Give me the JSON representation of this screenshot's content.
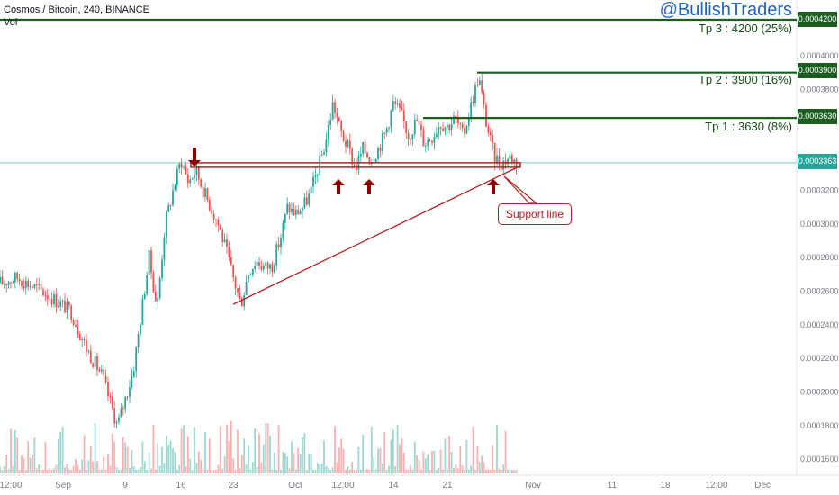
{
  "header": {
    "title": "Cosmos / Bitcoin, 240, BINANCE",
    "vol_label": "Vol"
  },
  "brand": "@BullishTraders",
  "targets": [
    {
      "label": "Tp 3 : 4200 (25%)",
      "price": 0.00042,
      "tag": "0.0004200"
    },
    {
      "label": "Tp 2 : 3900 (16%)",
      "price": 0.00039,
      "tag": "0.0003900"
    },
    {
      "label": "Tp 1 : 3630 (8%)",
      "price": 0.000363,
      "tag": "0.0003630"
    }
  ],
  "current_price_tag": "0.0003363",
  "annotation": "Support line",
  "colors": {
    "up": "#26a69a",
    "down": "#ef5350",
    "target_line": "#1b5e20",
    "support": "#b22222",
    "current": "#26a69a",
    "brand": "#1e64c8"
  },
  "chart_data": {
    "type": "candlestick",
    "symbol": "Cosmos / Bitcoin",
    "interval": "240",
    "exchange": "BINANCE",
    "y_scale": "price (BTC)",
    "ylim": [
      0.000154,
      0.00042
    ],
    "y_ticks": [
      "0.0004000",
      "0.0003800",
      "0.0003200",
      "0.0003000",
      "0.0002800",
      "0.0002600",
      "0.0002400",
      "0.0002200",
      "0.0002000",
      "0.0001800",
      "0.0001600"
    ],
    "x_ticks": [
      "12:00",
      "Sep",
      "9",
      "16",
      "23",
      "Oct",
      "12:00",
      "14",
      "21",
      "Nov",
      "11",
      "18",
      "12:00",
      "Dec"
    ],
    "price_path": [
      {
        "d": "Aug 28",
        "p": 0.000265
      },
      {
        "d": "Aug 29",
        "p": 0.000268
      },
      {
        "d": "Aug 31",
        "p": 0.000258
      },
      {
        "d": "Sep 2",
        "p": 0.000248
      },
      {
        "d": "Sep 4",
        "p": 0.000226
      },
      {
        "d": "Sep 6",
        "p": 0.00021
      },
      {
        "d": "Sep 8",
        "p": 0.00018
      },
      {
        "d": "Sep 10",
        "p": 0.000212
      },
      {
        "d": "Sep 11",
        "p": 0.000246
      },
      {
        "d": "Sep 12",
        "p": 0.00028
      },
      {
        "d": "Sep 13",
        "p": 0.00025
      },
      {
        "d": "Sep 14",
        "p": 0.0003
      },
      {
        "d": "Sep 15",
        "p": 0.00032
      },
      {
        "d": "Sep 16",
        "p": 0.000338
      },
      {
        "d": "Sep 17",
        "p": 0.000325
      },
      {
        "d": "Sep 18",
        "p": 0.000332
      },
      {
        "d": "Sep 19",
        "p": 0.00032
      },
      {
        "d": "Sep 21",
        "p": 0.0003
      },
      {
        "d": "Sep 22",
        "p": 0.000285
      },
      {
        "d": "Sep 23",
        "p": 0.000268
      },
      {
        "d": "Sep 24",
        "p": 0.000252
      },
      {
        "d": "Sep 25",
        "p": 0.000272
      },
      {
        "d": "Sep 26",
        "p": 0.000278
      },
      {
        "d": "Sep 27",
        "p": 0.000274
      },
      {
        "d": "Sep 28",
        "p": 0.000275
      },
      {
        "d": "Sep 29",
        "p": 0.00029
      },
      {
        "d": "Sep 30",
        "p": 0.00031
      },
      {
        "d": "Oct 1",
        "p": 0.000306
      },
      {
        "d": "Oct 2",
        "p": 0.00031
      },
      {
        "d": "Oct 3",
        "p": 0.000318
      },
      {
        "d": "Oct 4",
        "p": 0.000333
      },
      {
        "d": "Oct 5",
        "p": 0.000348
      },
      {
        "d": "Oct 6",
        "p": 0.000372
      },
      {
        "d": "Oct 7",
        "p": 0.000355
      },
      {
        "d": "Oct 8",
        "p": 0.000345
      },
      {
        "d": "Oct 9",
        "p": 0.000333
      },
      {
        "d": "Oct 10",
        "p": 0.000345
      },
      {
        "d": "Oct 11",
        "p": 0.000338
      },
      {
        "d": "Oct 12",
        "p": 0.000345
      },
      {
        "d": "Oct 13",
        "p": 0.000355
      },
      {
        "d": "Oct 14",
        "p": 0.000372
      },
      {
        "d": "Oct 15",
        "p": 0.000365
      },
      {
        "d": "Oct 16",
        "p": 0.000352
      },
      {
        "d": "Oct 17",
        "p": 0.000362
      },
      {
        "d": "Oct 18",
        "p": 0.000348
      },
      {
        "d": "Oct 19",
        "p": 0.000352
      },
      {
        "d": "Oct 20",
        "p": 0.00036
      },
      {
        "d": "Oct 21",
        "p": 0.000358
      },
      {
        "d": "Oct 22",
        "p": 0.000363
      },
      {
        "d": "Oct 23",
        "p": 0.000352
      },
      {
        "d": "Oct 24",
        "p": 0.00037
      },
      {
        "d": "Oct 25",
        "p": 0.000388
      },
      {
        "d": "Oct 26",
        "p": 0.00036
      },
      {
        "d": "Oct 27",
        "p": 0.00034
      },
      {
        "d": "Oct 28",
        "p": 0.000336
      },
      {
        "d": "Oct 29",
        "p": 0.00034
      },
      {
        "d": "Oct 30",
        "p": 0.000336
      }
    ],
    "horizontal_levels": [
      {
        "name": "Tp 3",
        "value": 0.00042
      },
      {
        "name": "Tp 2",
        "value": 0.00039
      },
      {
        "name": "Tp 1",
        "value": 0.000363
      },
      {
        "name": "Support",
        "value": 0.000335
      },
      {
        "name": "Current",
        "value": 0.0003363
      }
    ],
    "trendline": {
      "from": {
        "d": "Sep 23",
        "p": 0.00025
      },
      "to": {
        "d": "Oct 29",
        "p": 0.000334
      }
    },
    "arrows": [
      {
        "d": "Sep 16",
        "dir": "down"
      },
      {
        "d": "Oct 6",
        "dir": "up"
      },
      {
        "d": "Oct 12",
        "dir": "up"
      },
      {
        "d": "Oct 27",
        "dir": "up"
      }
    ]
  }
}
